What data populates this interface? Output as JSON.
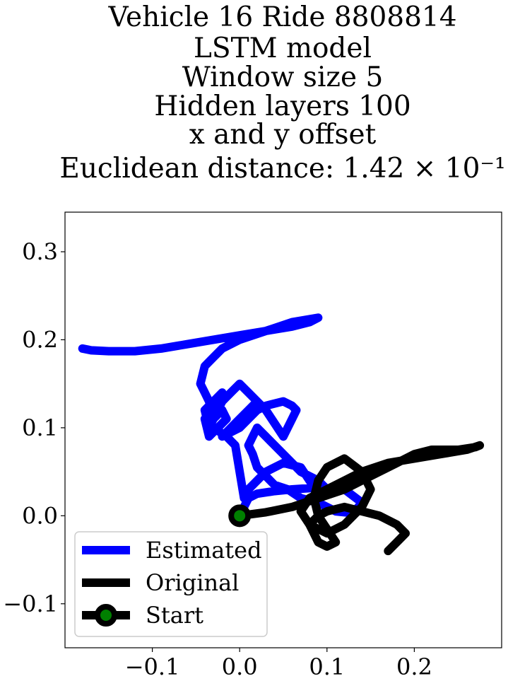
{
  "chart_data": {
    "type": "line",
    "title_lines": [
      "Vehicle 16 Ride 8808814",
      "LSTM model",
      "Window size 5",
      "Hidden layers 100",
      "x and y offset",
      "Euclidean distance: 1.42 × 10⁻¹"
    ],
    "xlabel": "",
    "ylabel": "",
    "xlim": [
      -0.2,
      0.3
    ],
    "ylim": [
      -0.15,
      0.345
    ],
    "xticks": [
      -0.1,
      0.0,
      0.1,
      0.2
    ],
    "xtick_labels": [
      "−0.1",
      "0.0",
      "0.1",
      "0.2"
    ],
    "yticks": [
      -0.1,
      0.0,
      0.1,
      0.2,
      0.3
    ],
    "ytick_labels": [
      "−0.1",
      "0.0",
      "0.1",
      "0.2",
      "0.3"
    ],
    "grid": false,
    "legend_position": "lower-left",
    "series": [
      {
        "name": "Estimated",
        "color": "#0000ff",
        "x": [
          0.0,
          0.01,
          0.02,
          0.04,
          0.06,
          0.09,
          0.12,
          0.14,
          0.13,
          0.11,
          0.09,
          0.07,
          0.055,
          0.04,
          0.03,
          0.02,
          0.015,
          0.01,
          0.015,
          0.02,
          0.03,
          0.05,
          0.07,
          0.09,
          0.1,
          0.09,
          0.07,
          0.05,
          0.03,
          0.02,
          0.01,
          0.005,
          -0.005,
          -0.015,
          -0.03,
          -0.04,
          -0.035,
          -0.025,
          -0.015,
          -0.02,
          -0.03,
          -0.035,
          -0.04,
          -0.03,
          -0.02,
          -0.03,
          -0.04,
          -0.035,
          -0.02,
          -0.01,
          0.0,
          0.01,
          0.02,
          0.01,
          0.0,
          -0.01,
          -0.02,
          -0.01,
          0.0,
          0.01,
          0.02,
          0.03,
          0.05,
          0.06,
          0.065,
          0.06,
          0.05,
          0.03,
          0.01,
          0.0,
          -0.01,
          -0.02,
          -0.025,
          -0.03,
          -0.035,
          -0.04,
          -0.045,
          -0.04,
          -0.03,
          -0.02,
          0.0,
          0.03,
          0.06,
          0.09,
          0.08,
          0.06,
          0.03,
          0.0,
          -0.03,
          -0.06,
          -0.09,
          -0.12,
          -0.15,
          -0.17,
          -0.18
        ],
        "y": [
          0.0,
          0.02,
          0.025,
          0.028,
          0.03,
          0.032,
          0.03,
          0.015,
          0.003,
          0.005,
          0.015,
          0.02,
          0.03,
          0.035,
          0.045,
          0.055,
          0.07,
          0.08,
          0.09,
          0.1,
          0.09,
          0.07,
          0.05,
          0.04,
          0.03,
          0.025,
          0.055,
          0.06,
          0.05,
          0.04,
          0.03,
          0.02,
          0.08,
          0.09,
          0.1,
          0.11,
          0.09,
          0.1,
          0.11,
          0.12,
          0.11,
          0.1,
          0.12,
          0.13,
          0.14,
          0.13,
          0.12,
          0.11,
          0.13,
          0.14,
          0.15,
          0.14,
          0.13,
          0.12,
          0.11,
          0.1,
          0.09,
          0.095,
          0.1,
          0.11,
          0.12,
          0.125,
          0.13,
          0.125,
          0.12,
          0.11,
          0.09,
          0.12,
          0.14,
          0.15,
          0.14,
          0.13,
          0.12,
          0.11,
          0.13,
          0.14,
          0.15,
          0.17,
          0.18,
          0.19,
          0.2,
          0.21,
          0.22,
          0.225,
          0.22,
          0.215,
          0.21,
          0.205,
          0.2,
          0.195,
          0.19,
          0.187,
          0.187,
          0.188,
          0.19
        ]
      },
      {
        "name": "Original",
        "color": "#000000",
        "x": [
          0.0,
          0.03,
          0.06,
          0.09,
          0.12,
          0.15,
          0.18,
          0.2,
          0.22,
          0.25,
          0.27,
          0.275,
          0.26,
          0.23,
          0.2,
          0.17,
          0.14,
          0.12,
          0.1,
          0.08,
          0.07,
          0.08,
          0.1,
          0.12,
          0.14,
          0.15,
          0.14,
          0.12,
          0.1,
          0.09,
          0.085,
          0.09,
          0.1,
          0.11,
          0.1,
          0.09,
          0.085,
          0.08,
          0.09,
          0.1,
          0.12,
          0.14,
          0.16,
          0.18,
          0.19,
          0.18,
          0.17
        ],
        "y": [
          0.0,
          0.004,
          0.01,
          0.02,
          0.03,
          0.045,
          0.06,
          0.07,
          0.075,
          0.075,
          0.078,
          0.08,
          0.075,
          0.07,
          0.065,
          0.06,
          0.05,
          0.04,
          0.03,
          0.02,
          0.005,
          -0.01,
          -0.02,
          -0.01,
          0.01,
          0.03,
          0.05,
          0.065,
          0.055,
          0.04,
          0.02,
          0.0,
          -0.015,
          -0.03,
          -0.035,
          -0.03,
          -0.02,
          -0.01,
          0.0,
          0.005,
          0.01,
          0.005,
          0.0,
          -0.01,
          -0.02,
          -0.03,
          -0.04
        ]
      }
    ],
    "start_marker": {
      "name": "Start",
      "x": 0.0,
      "y": 0.0,
      "fill_color": "#008000",
      "edge_color": "#000000"
    }
  }
}
